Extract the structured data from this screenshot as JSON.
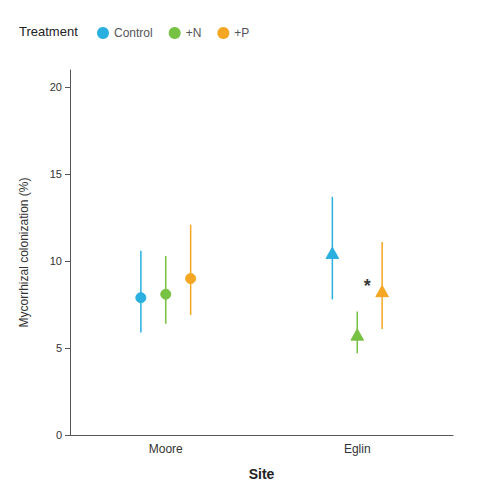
{
  "chart_data": {
    "type": "scatter",
    "xlabel": "Site",
    "ylabel": "Mycorrhizal colonization (%)",
    "categories": [
      "Moore",
      "Eglin"
    ],
    "ylim": [
      0,
      21
    ],
    "yticks": [
      0,
      5,
      10,
      15,
      20
    ],
    "grid": false,
    "legend": "top left",
    "legend_title": "Treatment",
    "markers": [
      "circle",
      "triangle"
    ],
    "series": [
      {
        "name": "Control",
        "color": "#29b0e0",
        "values": [
          7.9,
          10.4
        ],
        "ymin": [
          5.9,
          7.8
        ],
        "ymax": [
          10.6,
          13.7
        ]
      },
      {
        "name": "+N",
        "color": "#77c143",
        "values": [
          8.1,
          5.7
        ],
        "ymin": [
          6.4,
          4.7
        ],
        "ymax": [
          10.3,
          7.1
        ]
      },
      {
        "name": "+P",
        "color": "#f5a623",
        "values": [
          9.0,
          8.2
        ],
        "ymin": [
          6.9,
          6.1
        ],
        "ymax": [
          12.1,
          11.1
        ]
      }
    ],
    "annotations": [
      {
        "text": "*",
        "x": "Eglin",
        "y": 8.6
      }
    ]
  }
}
